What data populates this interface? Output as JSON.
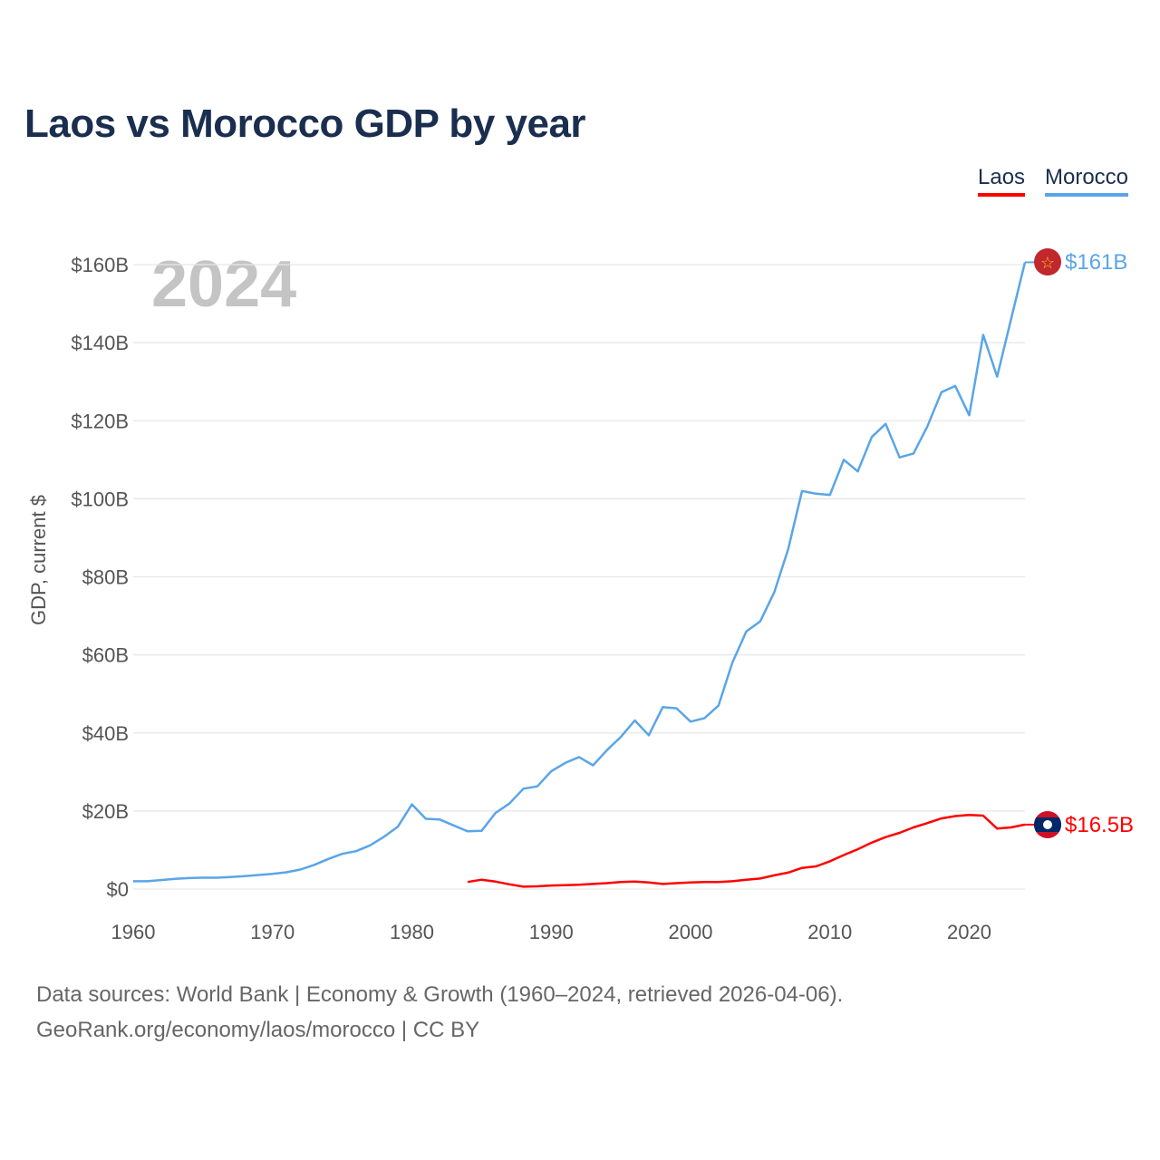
{
  "chart_data": {
    "type": "line",
    "title": "Laos vs Morocco GDP by year",
    "ylabel": "GDP, current $",
    "xlabel": "",
    "year_watermark": "2024",
    "xlim": [
      1960,
      2024
    ],
    "ylim": [
      0,
      160
    ],
    "x_ticks": [
      "1960",
      "1970",
      "1980",
      "1990",
      "2000",
      "2010",
      "2020"
    ],
    "y_ticks": [
      "$0",
      "$20B",
      "$40B",
      "$60B",
      "$80B",
      "$100B",
      "$120B",
      "$140B",
      "$160B"
    ],
    "grid": true,
    "legend_position": "top-right",
    "series": [
      {
        "name": "Laos",
        "color": "#ff0000",
        "end_label": "$16.5B",
        "start_year": 1984,
        "values": [
          1.8,
          2.4,
          1.9,
          1.2,
          0.6,
          0.7,
          0.9,
          1.0,
          1.1,
          1.3,
          1.5,
          1.8,
          1.9,
          1.7,
          1.3,
          1.5,
          1.7,
          1.8,
          1.8,
          2.0,
          2.4,
          2.7,
          3.5,
          4.2,
          5.4,
          5.8,
          7.1,
          8.7,
          10.2,
          11.9,
          13.3,
          14.4,
          15.8,
          16.9,
          18.1,
          18.7,
          19.0,
          18.8,
          15.5,
          15.8,
          16.5
        ]
      },
      {
        "name": "Morocco",
        "color": "#5aa5e8",
        "end_label": "$161B",
        "start_year": 1960,
        "values": [
          2.0,
          2.0,
          2.3,
          2.6,
          2.8,
          2.9,
          2.9,
          3.1,
          3.3,
          3.6,
          3.9,
          4.3,
          5.0,
          6.2,
          7.7,
          9.0,
          9.7,
          11.2,
          13.4,
          16.0,
          21.7,
          18.0,
          17.8,
          16.3,
          14.8,
          14.9,
          19.5,
          21.9,
          25.7,
          26.3,
          30.2,
          32.3,
          33.8,
          31.7,
          35.6,
          39.0,
          43.2,
          39.4,
          46.6,
          46.3,
          42.9,
          43.8,
          47.0,
          58.0,
          66.0,
          68.6,
          76.0,
          87.0,
          102.0,
          101.3,
          101.0,
          110.0,
          107.0,
          115.8,
          119.2,
          110.6,
          111.6,
          118.6,
          127.3,
          128.9,
          121.4,
          142.0,
          131.3,
          146.0,
          160.6
        ]
      }
    ]
  },
  "footer": {
    "line1": "Data sources: World Bank | Economy & Growth (1960–2024, retrieved 2026-04-06).",
    "line2": "GeoRank.org/economy/laos/morocco | CC BY"
  }
}
